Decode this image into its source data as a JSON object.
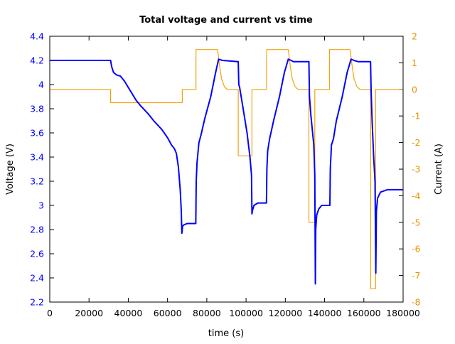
{
  "chart_data": {
    "type": "line",
    "title": "Total voltage and current vs time",
    "xlabel": "time (s)",
    "ylabel": "Voltage (V)",
    "y2label": "Current (A)",
    "xlim": [
      0,
      180000
    ],
    "ylim": [
      2.2,
      4.4
    ],
    "y2lim": [
      -8,
      2
    ],
    "grid": false,
    "legend": "none",
    "x_ticks": [
      "0",
      "20000",
      "40000",
      "60000",
      "80000",
      "100000",
      "120000",
      "140000",
      "160000",
      "180000"
    ],
    "y_ticks": [
      "2.2",
      "2.4",
      "2.6",
      "2.8",
      "3",
      "3.2",
      "3.4",
      "3.6",
      "3.8",
      "4",
      "4.2",
      "4.4"
    ],
    "y2_ticks": [
      "-8",
      "-7",
      "-6",
      "-5",
      "-4",
      "-3",
      "-2",
      "-1",
      "0",
      "1",
      "2"
    ],
    "colors": {
      "voltage": "#0000ff",
      "current": "#f0a30a",
      "left_axis_text": "#0000ff",
      "right_axis_text": "#e69500"
    },
    "series": [
      {
        "axis": "left",
        "x": [
          0,
          31000,
          31500,
          32500,
          34000,
          36000,
          38000,
          41000,
          44000,
          46000,
          50000,
          53000,
          57000,
          60000,
          62000,
          63500,
          64500,
          65500,
          66500,
          67000,
          67300,
          67700,
          68500,
          70000,
          74400,
          74600,
          75000,
          76000,
          77000,
          79000,
          82000,
          84500,
          86000,
          88000,
          96000,
          96300,
          96700,
          98500,
          100500,
          102000,
          102800,
          103000,
          103300,
          104000,
          106000,
          110400,
          110600,
          111000,
          112000,
          114000,
          117000,
          119500,
          121500,
          123000,
          124000,
          132000,
          132300,
          133000,
          134500,
          135000,
          135300,
          135500,
          136000,
          137000,
          138500,
          142700,
          142900,
          143500,
          144500,
          146000,
          149000,
          151500,
          153500,
          155000,
          157000,
          163400,
          163700,
          164200,
          165000,
          165700,
          166100,
          166400,
          167000,
          168500,
          172000,
          180000
        ],
        "y": [
          4.2,
          4.2,
          4.15,
          4.1,
          4.08,
          4.07,
          4.03,
          3.95,
          3.87,
          3.83,
          3.76,
          3.7,
          3.63,
          3.56,
          3.5,
          3.47,
          3.43,
          3.32,
          3.12,
          2.95,
          2.77,
          2.83,
          2.84,
          2.85,
          2.85,
          3.2,
          3.35,
          3.52,
          3.58,
          3.72,
          3.9,
          4.1,
          4.21,
          4.2,
          4.19,
          4.0,
          3.98,
          3.8,
          3.6,
          3.4,
          3.25,
          2.93,
          2.96,
          3.0,
          3.02,
          3.02,
          3.3,
          3.45,
          3.55,
          3.7,
          3.9,
          4.1,
          4.21,
          4.2,
          4.19,
          4.19,
          3.9,
          3.75,
          3.5,
          3.25,
          2.35,
          2.8,
          2.92,
          2.97,
          3.0,
          3.0,
          3.3,
          3.5,
          3.55,
          3.7,
          3.9,
          4.1,
          4.21,
          4.2,
          4.19,
          4.19,
          3.95,
          3.7,
          3.4,
          3.2,
          2.44,
          2.95,
          3.06,
          3.11,
          3.13,
          3.13
        ]
      },
      {
        "axis": "right",
        "x": [
          0,
          31000,
          31000,
          67500,
          67500,
          74500,
          74500,
          85500,
          86500,
          87500,
          89000,
          90500,
          96000,
          96000,
          103000,
          103000,
          110500,
          110500,
          121500,
          122500,
          123500,
          125000,
          126500,
          132000,
          132000,
          135000,
          135000,
          142500,
          142500,
          153000,
          154000,
          155000,
          156500,
          158000,
          163500,
          163500,
          166000,
          166000,
          180000
        ],
        "y": [
          0,
          0,
          -0.5,
          -0.5,
          0,
          0,
          1.5,
          1.5,
          0.9,
          0.4,
          0.1,
          0,
          0,
          -2.5,
          -2.5,
          0,
          0,
          1.5,
          1.5,
          0.9,
          0.4,
          0.1,
          0,
          0,
          -5,
          -5,
          0,
          0,
          1.5,
          1.5,
          0.9,
          0.4,
          0.1,
          0,
          0,
          -7.5,
          -7.5,
          0,
          0
        ]
      }
    ]
  }
}
